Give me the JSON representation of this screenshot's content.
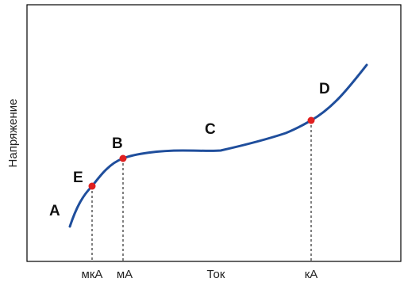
{
  "chart_data": {
    "type": "line",
    "title": "",
    "xlabel": "Ток",
    "ylabel": "Напряжение",
    "grid": false,
    "x_scale": "qualitative",
    "y_scale": "qualitative",
    "x_tick_labels": [
      "мкА",
      "мА",
      "кА"
    ],
    "series": [
      {
        "values_note_free": true,
        "line_color": "#1f4e9c"
      }
    ],
    "marked_points": [
      {
        "label": "E",
        "x_tick": "мкА",
        "color": "#e02020"
      },
      {
        "label": "B",
        "x_tick": "мА",
        "color": "#e02020"
      },
      {
        "label": "D",
        "x_tick": "кА",
        "color": "#e02020"
      }
    ],
    "region_labels": [
      "A",
      "E",
      "B",
      "C",
      "D"
    ],
    "colors": {
      "curve": "#1f4e9c",
      "markers": "#e02020",
      "axes": "#000000"
    }
  }
}
